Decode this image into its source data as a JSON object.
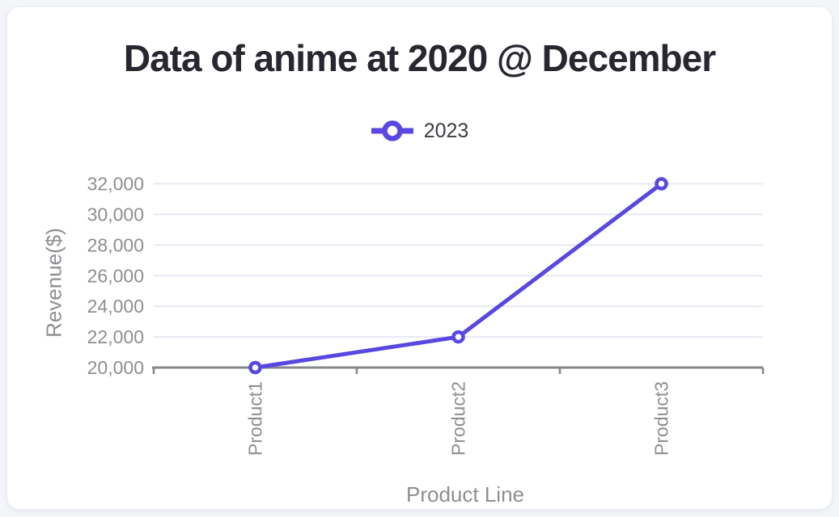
{
  "page": {
    "background": "#f3f5f8",
    "card_background": "#ffffff"
  },
  "chart_data": {
    "type": "line",
    "title": "Data of anime at 2020 @ December",
    "categories": [
      "Product1",
      "Product2",
      "Product3"
    ],
    "series": [
      {
        "name": "2023",
        "values": [
          20000,
          22000,
          32000
        ],
        "color": "#5847e0"
      }
    ],
    "xlabel": "Product Line",
    "ylabel": "Revenue($)",
    "ylim": [
      20000,
      32000
    ],
    "ytick_step": 2000,
    "ytick_labels": [
      "20,000",
      "22,000",
      "24,000",
      "26,000",
      "28,000",
      "30,000",
      "32,000"
    ],
    "grid": true,
    "legend_position": "top-center",
    "marker_style": "hollow-circle",
    "colors": {
      "line": "#5847e0",
      "marker_fill": "#ffffff",
      "grid": "#e7e9f4",
      "axis": "#85878d",
      "tick_label": "#8e8e93",
      "title": "#27272f",
      "legend_text": "#3c3c44"
    }
  }
}
